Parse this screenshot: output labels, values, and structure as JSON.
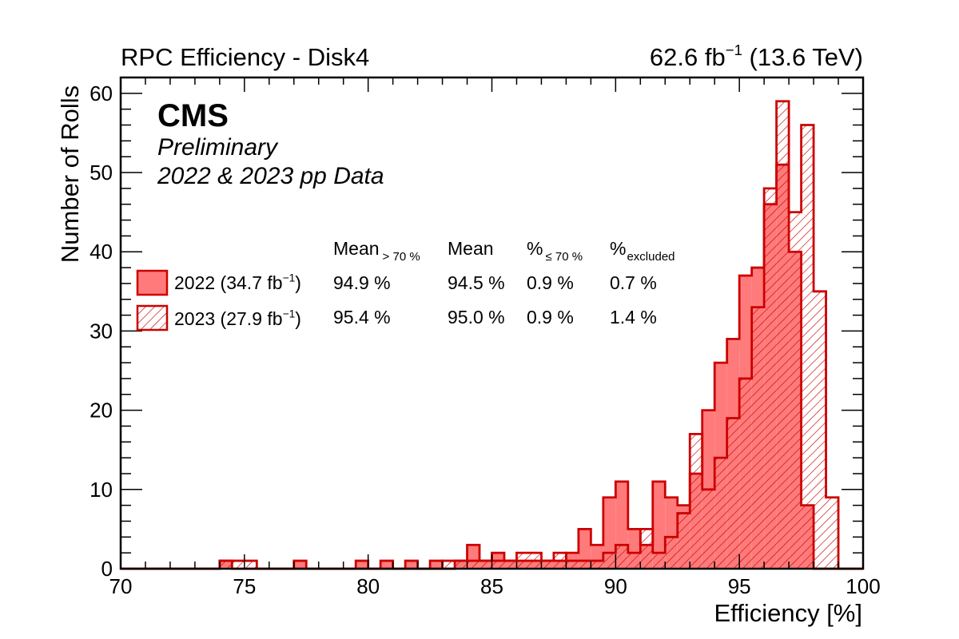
{
  "header": {
    "title": "RPC Efficiency - Disk4",
    "lumi_value": "62.6 fb",
    "lumi_exp": "−1",
    "lumi_energy": " (13.6 TeV)"
  },
  "labels": {
    "experiment": "CMS",
    "status": "Preliminary",
    "dataset": "2022 & 2023 pp Data"
  },
  "stats_header": {
    "mean_gt70": "Mean",
    "mean_gt70_sub": "> 70 %",
    "mean": "Mean",
    "pct_le70": "%",
    "pct_le70_sub": "≤ 70 %",
    "pct_excluded": "%",
    "pct_excluded_sub": "excluded"
  },
  "legend": [
    {
      "year": "2022 (34.7 fb",
      "exp": "−1",
      "close": ")",
      "mean_gt70": "94.9 %",
      "mean": "94.5 %",
      "pct_le70": "0.9 %",
      "pct_excluded": "0.7 %",
      "style": "solid"
    },
    {
      "year": "2023 (27.9 fb",
      "exp": "−1",
      "close": ")",
      "mean_gt70": "95.4 %",
      "mean": "95.0 %",
      "pct_le70": "0.9 %",
      "pct_excluded": "1.4 %",
      "style": "hatched"
    }
  ],
  "colors": {
    "fill_2022": "#ff7b7b",
    "line": "#cc0000"
  },
  "chart_data": {
    "type": "histogram",
    "xlabel": "Efficiency [%]",
    "ylabel": "Number of Rolls",
    "xlim": [
      70,
      100
    ],
    "ylim": [
      0,
      62
    ],
    "xticks": [
      70,
      75,
      80,
      85,
      90,
      95,
      100
    ],
    "yticks": [
      0,
      10,
      20,
      30,
      40,
      50,
      60
    ],
    "bin_width": 0.5,
    "bin_edges_start": 70,
    "series": [
      {
        "name": "2022 (34.7 fb−1)",
        "values": [
          0,
          0,
          0,
          0,
          0,
          0,
          0,
          0,
          1,
          0,
          0,
          0,
          0,
          0,
          1,
          0,
          0,
          0,
          0,
          1,
          0,
          1,
          0,
          1,
          0,
          1,
          0,
          1,
          3,
          1,
          2,
          1,
          1,
          1,
          1,
          1,
          2,
          5,
          3,
          9,
          11,
          5,
          3,
          11,
          9,
          8,
          12,
          20,
          26,
          29,
          37,
          38,
          46,
          51,
          40,
          8,
          0,
          0,
          0,
          0
        ]
      },
      {
        "name": "2023 (27.9 fb−1)",
        "values": [
          0,
          0,
          0,
          0,
          0,
          0,
          0,
          0,
          1,
          1,
          1,
          0,
          0,
          0,
          0,
          0,
          0,
          0,
          0,
          0,
          0,
          0,
          0,
          0,
          0,
          0,
          1,
          1,
          1,
          1,
          1,
          1,
          2,
          2,
          1,
          2,
          1,
          1,
          1,
          2,
          3,
          2,
          5,
          2,
          4,
          7,
          17,
          10,
          14,
          19,
          24,
          33,
          48,
          59,
          45,
          56,
          35,
          9,
          0,
          0
        ]
      }
    ]
  }
}
